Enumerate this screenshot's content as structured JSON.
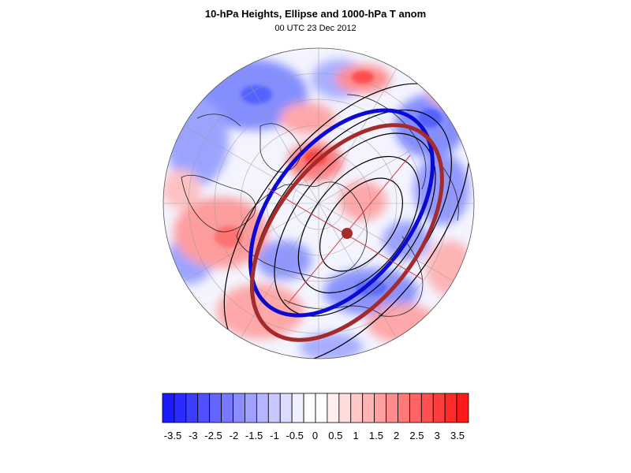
{
  "title": "10-hPa Heights, Ellipse and 1000-hPa T anom",
  "subtitle": "00 UTC 23 Dec 2012",
  "colorbar": {
    "labels": [
      "-3.5",
      "-3",
      "-2.5",
      "-2",
      "-1.5",
      "-1",
      "-0.5",
      "0",
      "0.5",
      "1",
      "1.5",
      "2",
      "2.5",
      "3",
      "3.5"
    ],
    "colors": [
      "#1a1aff",
      "#2b2bff",
      "#3d3dff",
      "#5050ff",
      "#6464ff",
      "#7878ff",
      "#8c8cff",
      "#a0a0ff",
      "#b4b4ff",
      "#c8c8ff",
      "#dcdcff",
      "#f0f0ff",
      "#ffffff",
      "#ffffff",
      "#fff0f0",
      "#ffdcdc",
      "#ffc8c8",
      "#ffb4b4",
      "#ffa0a0",
      "#ff8c8c",
      "#ff7878",
      "#ff6464",
      "#ff5050",
      "#ff3d3d",
      "#ff2b2b",
      "#ff1a1a"
    ]
  },
  "map": {
    "ellipse_colors": {
      "blue": "#0a0ad2",
      "brown": "#a52a2a"
    },
    "field_colors": {
      "warm": "#ff5a5a",
      "cold": "#5a6aff"
    }
  }
}
